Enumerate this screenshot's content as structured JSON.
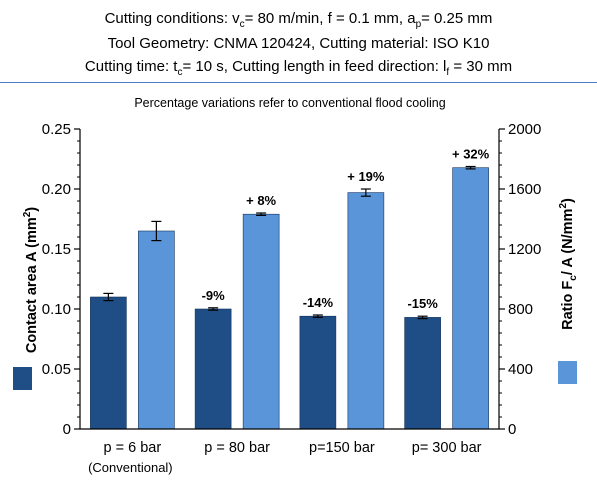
{
  "header": {
    "line1": {
      "prefix": "Cutting conditions: v",
      "sub1": "c",
      "mid1": "= 80 m/min, f = 0.1 mm, a",
      "sub2": "p",
      "suffix": "= 0.25 mm"
    },
    "line2": "Tool Geometry: CNMA 120424, Cutting material: ISO K10",
    "line3": {
      "prefix": "Cutting time: t",
      "sub1": "c",
      "mid1": "= 10 s, Cutting length in feed direction: l",
      "sub2": "f",
      "suffix": " = 30 mm"
    }
  },
  "colors": {
    "area": "#1f4e86",
    "ratio": "#5b95d9",
    "rule": "#4a7fc1",
    "axis": "#000000"
  },
  "chart_data": {
    "type": "bar",
    "title": "Percentage variations refer to conventional flood cooling",
    "categories": [
      "p = 6 bar",
      "p = 80 bar",
      "p=150 bar",
      "p= 300 bar"
    ],
    "category_sublabels": [
      "(Conventional)",
      "",
      "",
      ""
    ],
    "y_left": {
      "label_prefix": "Contact area A (mm",
      "label_sup": "2",
      "label_suffix": ")",
      "lim": [
        0,
        0.25
      ],
      "ticks": [
        "0",
        "0.05",
        "0.10",
        "0.15",
        "0.20",
        "0.25"
      ]
    },
    "y_right": {
      "label_prefix": "Ratio F",
      "label_sub": "c",
      "label_mid": "/ A (N/mm",
      "label_sup": "2",
      "label_suffix": ")",
      "lim": [
        0,
        2000
      ],
      "ticks": [
        "0",
        "400",
        "800",
        "1200",
        "1600",
        "2000"
      ]
    },
    "series": [
      {
        "axis": "left",
        "values": [
          0.11,
          0.1,
          0.094,
          0.093
        ],
        "errors": [
          0.003,
          0.001,
          0.001,
          0.001
        ],
        "annotations": [
          "",
          "-9%",
          "-14%",
          "-15%"
        ]
      },
      {
        "axis": "right",
        "values": [
          1320,
          1432,
          1576,
          1742
        ],
        "errors": [
          64,
          8,
          24,
          8
        ],
        "annotations": [
          "",
          "+ 8%",
          "+ 19%",
          "+ 32%"
        ]
      }
    ]
  }
}
